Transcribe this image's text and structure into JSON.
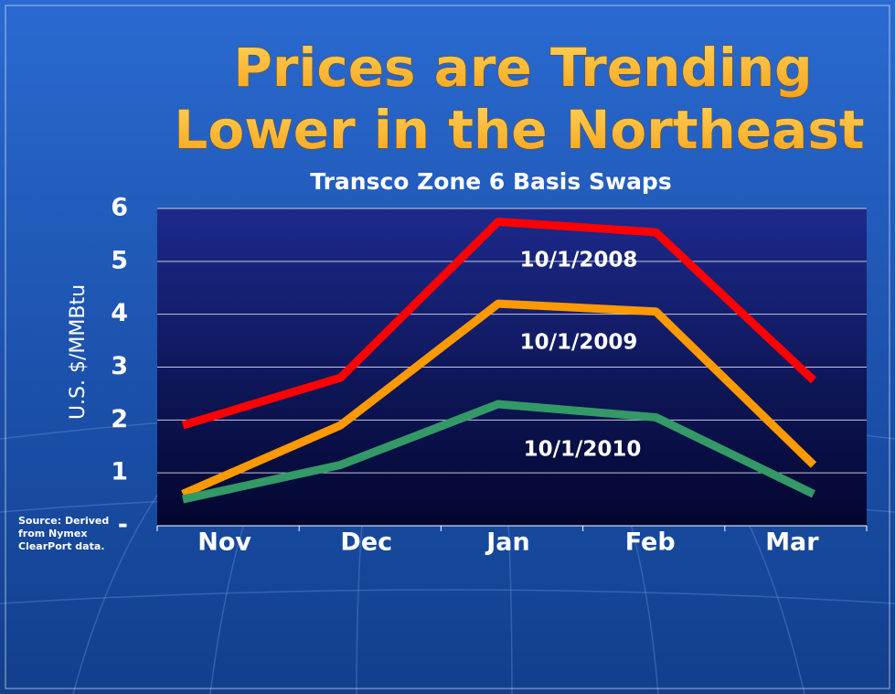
{
  "chart_data": {
    "type": "line",
    "title": [
      "Prices are Trending",
      "Lower in the Northeast"
    ],
    "subtitle": "Transco Zone 6 Basis Swaps",
    "y_label": "U.S. $/MMBtu",
    "source": [
      "Source: Derived",
      "from Nymex",
      "ClearPort data."
    ],
    "categories": [
      "Nov",
      "Dec",
      "Jan",
      "Feb",
      "Mar"
    ],
    "series": [
      {
        "name": "10/1/2008",
        "color": "#ff0000",
        "values": [
          1.9,
          2.8,
          5.75,
          5.55,
          2.75
        ]
      },
      {
        "name": "10/1/2009",
        "color": "#ff9900",
        "values": [
          0.6,
          1.9,
          4.2,
          4.05,
          1.15
        ]
      },
      {
        "name": "10/1/2010",
        "color": "#339966",
        "values": [
          0.5,
          1.15,
          2.3,
          2.05,
          0.6
        ]
      }
    ],
    "ylim": [
      0,
      6
    ],
    "yticks": [
      {
        "value": 0,
        "label": "-"
      },
      1,
      2,
      3,
      4,
      5,
      6
    ],
    "grid": true
  }
}
